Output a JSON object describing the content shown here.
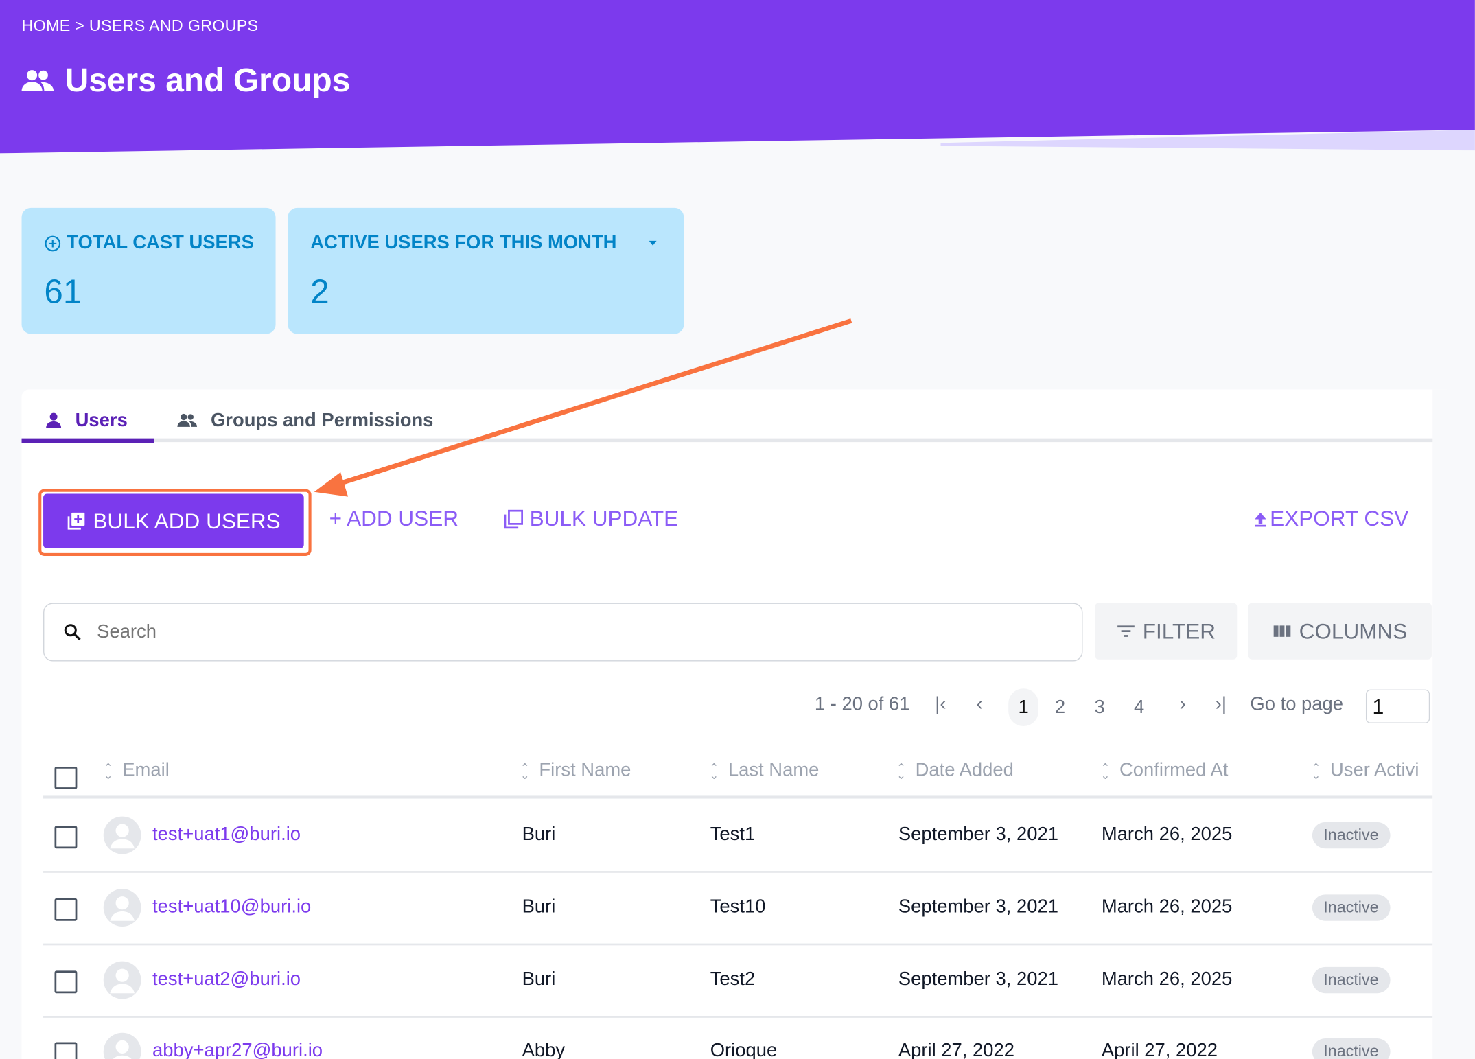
{
  "header": {
    "breadcrumb": "HOME > USERS AND GROUPS",
    "title": "Users and Groups",
    "icon": "people-icon"
  },
  "stats": [
    {
      "label": "TOTAL CAST USERS",
      "value": "61",
      "icon": "plus-circle-icon"
    },
    {
      "label": "ACTIVE USERS FOR THIS MONTH",
      "value": "2",
      "icon": "caret-down-icon"
    }
  ],
  "tabs": [
    {
      "label": "Users",
      "active": true,
      "icon": "person-icon"
    },
    {
      "label": "Groups and Permissions",
      "active": false,
      "icon": "people-icon"
    }
  ],
  "toolbar": {
    "bulk_add": "BULK ADD USERS",
    "add_user": "+ ADD USER",
    "bulk_update": "BULK UPDATE",
    "export_csv": "EXPORT CSV"
  },
  "search": {
    "placeholder": "Search",
    "value": ""
  },
  "filter_label": "FILTER",
  "columns_label": "COLUMNS",
  "pagination": {
    "range": "1 - 20 of 61",
    "pages": [
      "1",
      "2",
      "3",
      "4"
    ],
    "current": "1",
    "goto_label": "Go to page",
    "goto_value": "1"
  },
  "table": {
    "columns": [
      "Email",
      "First Name",
      "Last Name",
      "Date Added",
      "Confirmed At",
      "User Activi"
    ],
    "rows": [
      {
        "email": "test+uat1@buri.io",
        "first": "Buri",
        "last": "Test1",
        "added": "September 3, 2021",
        "confirmed": "March 26, 2025",
        "status": "Inactive"
      },
      {
        "email": "test+uat10@buri.io",
        "first": "Buri",
        "last": "Test10",
        "added": "September 3, 2021",
        "confirmed": "March 26, 2025",
        "status": "Inactive"
      },
      {
        "email": "test+uat2@buri.io",
        "first": "Buri",
        "last": "Test2",
        "added": "September 3, 2021",
        "confirmed": "March 26, 2025",
        "status": "Inactive"
      },
      {
        "email": "abby+apr27@buri.io",
        "first": "Abby",
        "last": "Orioque",
        "added": "April 27, 2022",
        "confirmed": "April 27, 2022",
        "status": "Inactive"
      }
    ]
  },
  "colors": {
    "brand": "#7c3aed",
    "card": "#bae6fd",
    "card_text": "#0284c7",
    "annotation": "#f97340"
  }
}
